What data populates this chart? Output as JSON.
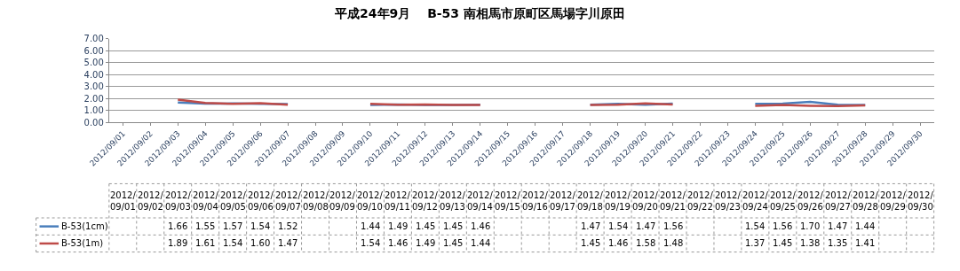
{
  "chart_data": {
    "type": "line",
    "title": "平成24年9月　 B-53 南相馬市原町区馬場字川原田",
    "categories": [
      "2012/09/01",
      "2012/09/02",
      "2012/09/03",
      "2012/09/04",
      "2012/09/05",
      "2012/09/06",
      "2012/09/07",
      "2012/09/08",
      "2012/09/09",
      "2012/09/10",
      "2012/09/11",
      "2012/09/12",
      "2012/09/13",
      "2012/09/14",
      "2012/09/15",
      "2012/09/16",
      "2012/09/17",
      "2012/09/18",
      "2012/09/19",
      "2012/09/20",
      "2012/09/21",
      "2012/09/22",
      "2012/09/23",
      "2012/09/24",
      "2012/09/25",
      "2012/09/26",
      "2012/09/27",
      "2012/09/28",
      "2012/09/29",
      "2012/09/30"
    ],
    "series": [
      {
        "name": "B-53(1cm)",
        "color": "#4a7ebb",
        "values": [
          null,
          null,
          1.66,
          1.55,
          1.57,
          1.54,
          1.52,
          null,
          null,
          1.44,
          1.49,
          1.45,
          1.45,
          1.46,
          null,
          null,
          null,
          1.47,
          1.54,
          1.47,
          1.56,
          null,
          null,
          1.54,
          1.56,
          1.7,
          1.47,
          1.44,
          null,
          null
        ],
        "value_labels": [
          null,
          null,
          "1.66",
          "1.55",
          "1.57",
          "1.54",
          "1.52",
          null,
          null,
          "1.44",
          "1.49",
          "1.45",
          "1.45",
          "1.46",
          null,
          null,
          null,
          "1.47",
          "1.54",
          "1.47",
          "1.56",
          null,
          null,
          "1.54",
          "1.56",
          "1.70",
          "1.47",
          "1.44",
          null,
          null
        ]
      },
      {
        "name": "B-53(1m)",
        "color": "#be4b48",
        "values": [
          null,
          null,
          1.89,
          1.61,
          1.54,
          1.6,
          1.47,
          null,
          null,
          1.54,
          1.46,
          1.49,
          1.45,
          1.44,
          null,
          null,
          null,
          1.45,
          1.46,
          1.58,
          1.48,
          null,
          null,
          1.37,
          1.45,
          1.38,
          1.35,
          1.41,
          null,
          null
        ],
        "value_labels": [
          null,
          null,
          "1.89",
          "1.61",
          "1.54",
          "1.60",
          "1.47",
          null,
          null,
          "1.54",
          "1.46",
          "1.49",
          "1.45",
          "1.44",
          null,
          null,
          null,
          "1.45",
          "1.46",
          "1.58",
          "1.48",
          null,
          null,
          "1.37",
          "1.45",
          "1.38",
          "1.35",
          "1.41",
          null,
          null
        ]
      }
    ],
    "ylim": [
      0,
      7
    ],
    "yticks": [
      {
        "value": 0,
        "label": "0.00"
      },
      {
        "value": 1,
        "label": "1.00"
      },
      {
        "value": 2,
        "label": "2.00"
      },
      {
        "value": 3,
        "label": "3.00"
      },
      {
        "value": 4,
        "label": "4.00"
      },
      {
        "value": 5,
        "label": "5.00"
      },
      {
        "value": 6,
        "label": "6.00"
      },
      {
        "value": 7,
        "label": "7.00"
      }
    ],
    "grid": "y",
    "legend": "bottom left",
    "marker": "none",
    "line_style": "solid"
  }
}
